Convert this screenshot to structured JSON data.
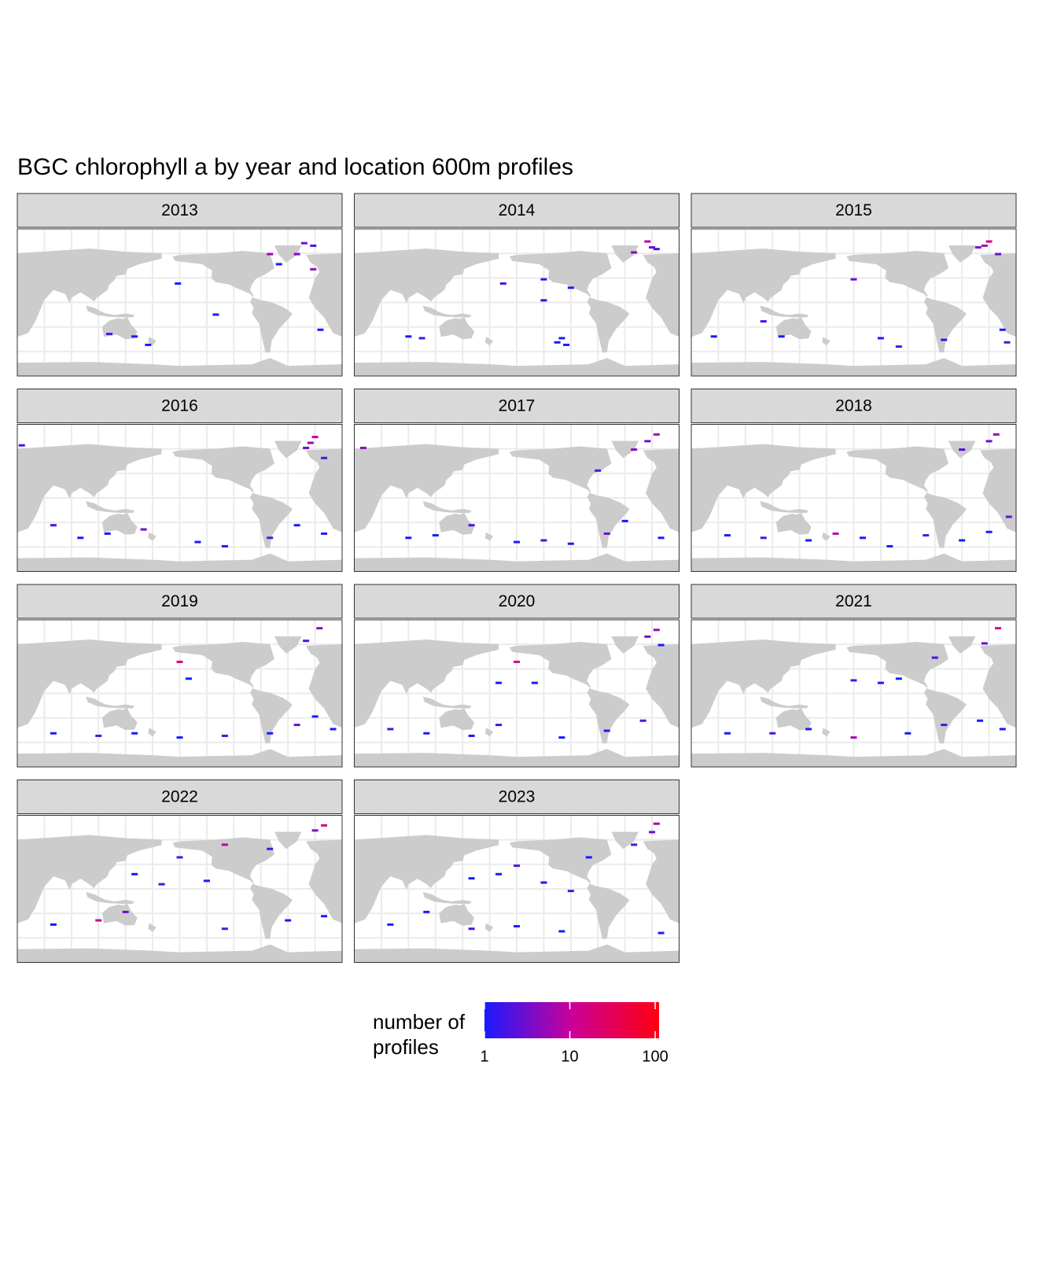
{
  "chart_data": {
    "type": "map",
    "title": "BGC chlorophyll a by year and location 600m profiles",
    "xlim": [
      20,
      380
    ],
    "ylim": [
      -85,
      90
    ],
    "land_color": "#cccccc",
    "legend": {
      "title": "number of\nprofiles",
      "log": true,
      "lim": [
        1,
        111
      ],
      "ticks": [
        1,
        10,
        100
      ],
      "colors": [
        "#1a1aff",
        "#cc0099",
        "#ff0010"
      ]
    },
    "facets": [
      {
        "label": "2013",
        "lon": [
          338,
          348,
          300,
          310,
          122,
          150,
          165,
          348,
          356,
          198,
          240,
          330
        ],
        "lat": [
          73,
          70,
          60,
          48,
          -35,
          -38,
          -48,
          42,
          -30,
          25,
          -12,
          60
        ],
        "values": [
          3,
          2,
          6,
          1,
          2,
          1,
          1,
          5,
          1,
          1,
          1,
          4
        ]
      },
      {
        "label": "2014",
        "lon": [
          345,
          350,
          355,
          330,
          80,
          95,
          250,
          255,
          245,
          230,
          260,
          185,
          230
        ],
        "lat": [
          75,
          68,
          66,
          62,
          -38,
          -40,
          -40,
          -48,
          -45,
          5,
          20,
          25,
          30
        ],
        "values": [
          8,
          3,
          2,
          4,
          1,
          2,
          1,
          1,
          1,
          1,
          1,
          2,
          1
        ]
      },
      {
        "label": "2015",
        "lon": [
          350,
          345,
          338,
          360,
          100,
          45,
          230,
          250,
          300,
          365,
          370,
          120,
          200
        ],
        "lat": [
          75,
          70,
          68,
          60,
          -20,
          -38,
          -40,
          -50,
          -42,
          -30,
          -45,
          -38,
          30
        ],
        "values": [
          12,
          6,
          4,
          3,
          2,
          1,
          1,
          2,
          1,
          1,
          2,
          1,
          3
        ]
      },
      {
        "label": "2016",
        "lon": [
          350,
          345,
          340,
          360,
          60,
          90,
          120,
          160,
          220,
          250,
          300,
          330,
          360,
          25
        ],
        "lat": [
          75,
          68,
          62,
          50,
          -30,
          -45,
          -40,
          -35,
          -50,
          -55,
          -45,
          -30,
          -40,
          65
        ],
        "values": [
          10,
          5,
          3,
          2,
          2,
          1,
          1,
          3,
          1,
          1,
          2,
          1,
          1,
          2
        ]
      },
      {
        "label": "2017",
        "lon": [
          355,
          345,
          330,
          290,
          30,
          80,
          110,
          150,
          200,
          230,
          260,
          300,
          320,
          360
        ],
        "lat": [
          78,
          70,
          60,
          35,
          62,
          -45,
          -42,
          -30,
          -50,
          -48,
          -52,
          -40,
          -25,
          -45
        ],
        "values": [
          6,
          3,
          4,
          2,
          5,
          1,
          1,
          2,
          1,
          2,
          1,
          3,
          1,
          1
        ]
      },
      {
        "label": "2018",
        "lon": [
          358,
          350,
          320,
          60,
          100,
          150,
          180,
          210,
          240,
          280,
          320,
          350,
          372
        ],
        "lat": [
          78,
          70,
          60,
          -42,
          -45,
          -48,
          -40,
          -45,
          -55,
          -42,
          -48,
          -38,
          -20
        ],
        "values": [
          5,
          3,
          2,
          1,
          2,
          1,
          8,
          1,
          1,
          2,
          1,
          1,
          3
        ]
      },
      {
        "label": "2019",
        "lon": [
          355,
          340,
          200,
          60,
          110,
          150,
          200,
          250,
          300,
          330,
          350,
          370,
          210
        ],
        "lat": [
          80,
          65,
          40,
          -45,
          -48,
          -45,
          -50,
          -48,
          -45,
          -35,
          -25,
          -40,
          20
        ],
        "values": [
          4,
          2,
          20,
          1,
          2,
          1,
          1,
          2,
          1,
          3,
          1,
          1,
          1
        ]
      },
      {
        "label": "2020",
        "lon": [
          355,
          345,
          200,
          180,
          220,
          60,
          100,
          150,
          180,
          250,
          300,
          340,
          360
        ],
        "lat": [
          78,
          70,
          40,
          15,
          15,
          -40,
          -45,
          -48,
          -35,
          -50,
          -42,
          -30,
          60
        ],
        "values": [
          6,
          3,
          12,
          1,
          1,
          2,
          1,
          1,
          2,
          1,
          1,
          2,
          1
        ]
      },
      {
        "label": "2021",
        "lon": [
          360,
          345,
          290,
          200,
          230,
          250,
          60,
          110,
          150,
          200,
          260,
          300,
          340,
          365
        ],
        "lat": [
          80,
          62,
          45,
          18,
          15,
          20,
          -45,
          -45,
          -40,
          -50,
          -45,
          -35,
          -30,
          -40
        ],
        "values": [
          15,
          3,
          2,
          2,
          1,
          1,
          1,
          2,
          1,
          6,
          1,
          2,
          1,
          1
        ]
      },
      {
        "label": "2022",
        "lon": [
          360,
          350,
          250,
          200,
          150,
          180,
          230,
          140,
          110,
          60,
          250,
          320,
          360,
          300
        ],
        "lat": [
          78,
          72,
          55,
          40,
          20,
          8,
          12,
          -25,
          -35,
          -40,
          -45,
          -35,
          -30,
          50
        ],
        "values": [
          20,
          4,
          8,
          2,
          1,
          2,
          1,
          3,
          12,
          1,
          2,
          1,
          1,
          2
        ]
      },
      {
        "label": "2023",
        "lon": [
          355,
          350,
          330,
          280,
          200,
          150,
          180,
          230,
          260,
          100,
          60,
          150,
          200,
          250,
          360
        ],
        "lat": [
          80,
          70,
          55,
          40,
          30,
          15,
          20,
          10,
          0,
          -25,
          -40,
          -45,
          -42,
          -48,
          -50
        ],
        "values": [
          6,
          3,
          2,
          1,
          2,
          1,
          1,
          1,
          2,
          1,
          1,
          2,
          1,
          1,
          1
        ]
      }
    ]
  }
}
